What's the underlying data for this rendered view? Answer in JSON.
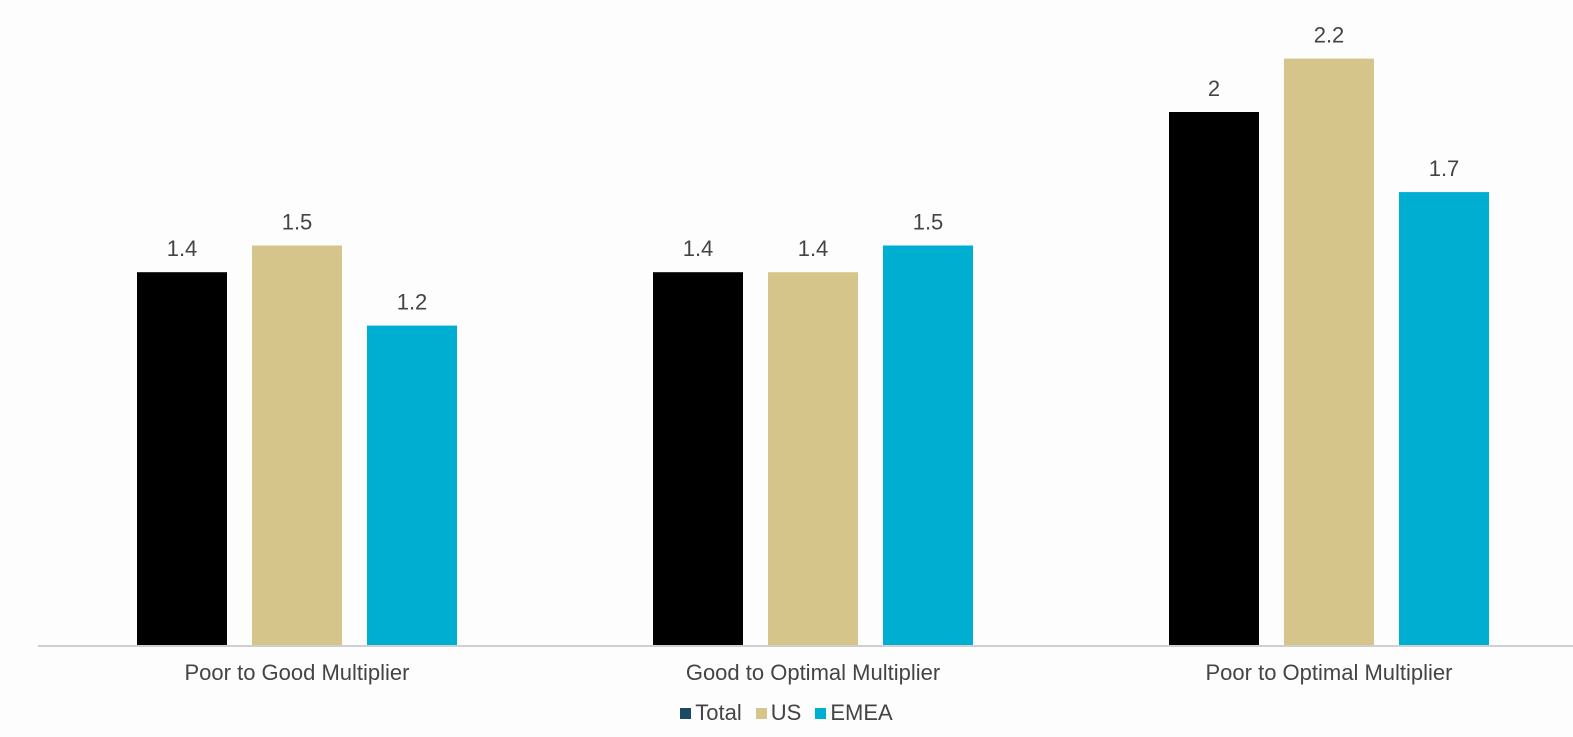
{
  "chart_data": {
    "type": "bar",
    "categories": [
      "Poor to Good Multiplier",
      "Good to Optimal Multiplier",
      "Poor to Optimal Multiplier"
    ],
    "series": [
      {
        "name": "Total",
        "color": "#000000",
        "values": [
          1.4,
          1.4,
          2
        ],
        "labels": [
          "1.4",
          "1.4",
          "2"
        ]
      },
      {
        "name": "US",
        "color": "#d6c58a",
        "values": [
          1.5,
          1.4,
          2.2
        ],
        "labels": [
          "1.5",
          "1.4",
          "2.2"
        ]
      },
      {
        "name": "EMEA",
        "color": "#00aed2",
        "values": [
          1.2,
          1.5,
          1.7
        ],
        "labels": [
          "1.2",
          "1.5",
          "1.7"
        ]
      }
    ],
    "ylim": [
      0,
      2.4
    ],
    "grid": false,
    "legend_position": "bottom",
    "axis_color": "#cfcfcf",
    "text_color": "#444444"
  }
}
